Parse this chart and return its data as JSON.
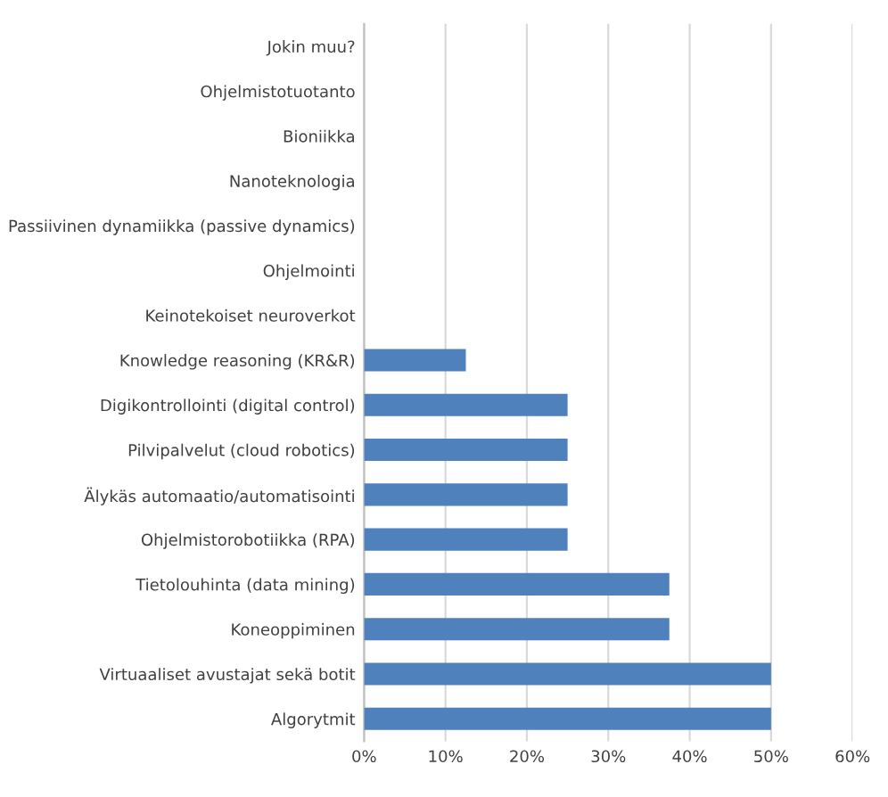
{
  "chart_data": {
    "type": "bar",
    "orientation": "horizontal",
    "categories": [
      "Jokin muu?",
      "Ohjelmistotuotanto",
      "Bioniikka",
      "Nanoteknologia",
      "Passiivinen dynamiikka (passive dynamics)",
      "Ohjelmointi",
      "Keinotekoiset neuroverkot",
      "Knowledge reasoning (KR&R)",
      "Digikontrollointi (digital control)",
      "Pilvipalvelut (cloud robotics)",
      "Älykäs automaatio/automatisointi",
      "Ohjelmistorobotiikka (RPA)",
      "Tietolouhinta (data mining)",
      "Koneoppiminen",
      "Virtuaaliset avustajat sekä botit",
      "Algorytmit"
    ],
    "values": [
      0,
      0,
      0,
      0,
      0,
      0,
      0,
      12.5,
      25,
      25,
      25,
      25,
      37.5,
      37.5,
      50,
      50
    ],
    "color": "#4f81bd",
    "xlim": [
      0,
      60
    ],
    "xticks": [
      {
        "value": 0,
        "label": "0%"
      },
      {
        "value": 10,
        "label": "10%"
      },
      {
        "value": 20,
        "label": "20%"
      },
      {
        "value": 30,
        "label": "30%"
      },
      {
        "value": 40,
        "label": "40%"
      },
      {
        "value": 50,
        "label": "50%"
      },
      {
        "value": 60,
        "label": "60%"
      }
    ],
    "grid": "x",
    "legend": false
  }
}
